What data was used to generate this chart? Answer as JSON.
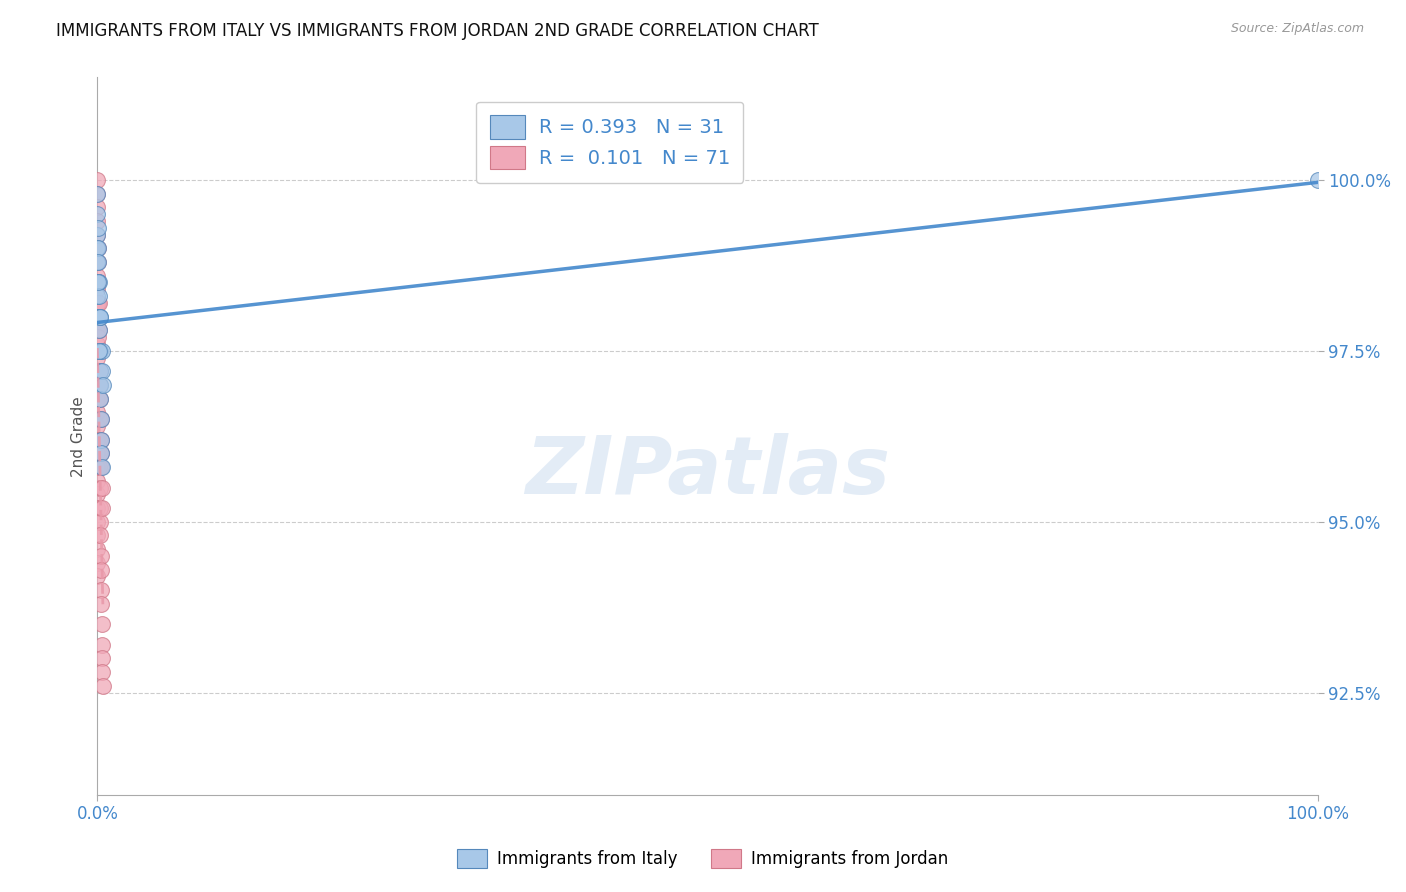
{
  "title": "IMMIGRANTS FROM ITALY VS IMMIGRANTS FROM JORDAN 2ND GRADE CORRELATION CHART",
  "source": "Source: ZipAtlas.com",
  "ylabel": "2nd Grade",
  "xlim": [
    0.0,
    100.0
  ],
  "ylim": [
    91.0,
    101.5
  ],
  "yticks": [
    92.5,
    95.0,
    97.5,
    100.0
  ],
  "ytick_labels": [
    "92.5%",
    "95.0%",
    "97.5%",
    "100.0%"
  ],
  "xticks": [
    0,
    100
  ],
  "xtick_labels": [
    "0.0%",
    "100.0%"
  ],
  "legend_italy": "Immigrants from Italy",
  "legend_jordan": "Immigrants from Jordan",
  "R_italy": 0.393,
  "N_italy": 31,
  "R_jordan": 0.101,
  "N_jordan": 71,
  "color_italy": "#a8c8e8",
  "color_jordan": "#f0a8b8",
  "trendline_italy_color": "#4488cc",
  "trendline_jordan_color": "#e898a8",
  "watermark": "ZIPatlas",
  "italy_x": [
    0.0,
    0.0,
    0.0,
    0.0,
    0.0,
    0.0,
    0.0,
    0.0,
    0.05,
    0.07,
    0.08,
    0.1,
    0.12,
    0.14,
    0.16,
    0.18,
    0.2,
    0.22,
    0.25,
    0.28,
    0.3,
    0.32,
    0.35,
    0.38,
    0.42,
    0.45,
    0.12,
    0.2,
    0.08,
    0.18,
    100.0
  ],
  "italy_y": [
    99.8,
    99.5,
    99.2,
    99.0,
    98.8,
    98.5,
    98.3,
    98.0,
    99.3,
    99.0,
    98.8,
    98.5,
    98.3,
    98.0,
    97.8,
    97.5,
    97.2,
    97.0,
    96.8,
    96.5,
    96.2,
    96.0,
    95.8,
    97.2,
    97.5,
    97.0,
    97.5,
    98.0,
    98.5,
    98.0,
    100.0
  ],
  "jordan_x": [
    0.0,
    0.0,
    0.0,
    0.0,
    0.0,
    0.0,
    0.0,
    0.0,
    0.0,
    0.0,
    0.0,
    0.0,
    0.0,
    0.0,
    0.0,
    0.0,
    0.0,
    0.0,
    0.0,
    0.0,
    0.0,
    0.0,
    0.0,
    0.0,
    0.0,
    0.0,
    0.0,
    0.0,
    0.0,
    0.0,
    0.04,
    0.04,
    0.06,
    0.06,
    0.08,
    0.08,
    0.1,
    0.1,
    0.12,
    0.12,
    0.14,
    0.16,
    0.18,
    0.2,
    0.22,
    0.25,
    0.28,
    0.3,
    0.32,
    0.34,
    0.36,
    0.38,
    0.4,
    0.42,
    0.44,
    0.05,
    0.07,
    0.09,
    0.11,
    0.13,
    0.15,
    0.17,
    0.19,
    0.21,
    0.23,
    0.26,
    0.29,
    0.31,
    0.33,
    0.35,
    0.37
  ],
  "jordan_y": [
    100.0,
    99.8,
    99.6,
    99.4,
    99.2,
    99.0,
    98.8,
    98.6,
    98.4,
    98.2,
    98.0,
    97.8,
    97.6,
    97.4,
    97.2,
    97.0,
    96.8,
    96.6,
    96.4,
    96.2,
    96.0,
    95.8,
    95.6,
    95.4,
    95.2,
    95.0,
    94.8,
    94.6,
    94.4,
    94.2,
    98.5,
    98.2,
    98.0,
    97.7,
    97.5,
    97.2,
    97.0,
    96.8,
    96.5,
    96.2,
    96.0,
    95.8,
    95.5,
    95.2,
    95.0,
    94.8,
    94.5,
    94.3,
    94.0,
    93.8,
    93.5,
    93.2,
    93.0,
    92.8,
    92.6,
    99.0,
    98.8,
    98.5,
    98.2,
    98.0,
    97.8,
    97.5,
    97.2,
    97.0,
    96.8,
    96.5,
    96.2,
    96.0,
    95.8,
    95.5,
    95.2
  ]
}
